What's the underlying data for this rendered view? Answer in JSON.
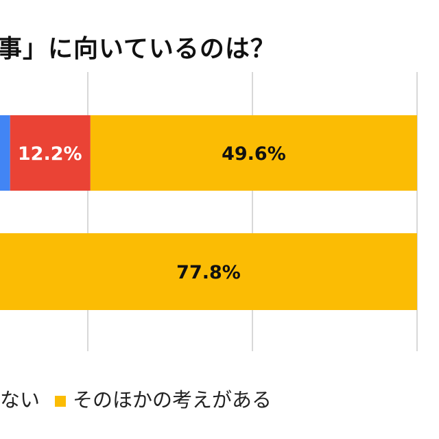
{
  "chart_data": {
    "type": "bar",
    "orientation": "horizontal",
    "stacked": true,
    "title": "事」に向いているのは？",
    "xlim": [
      0,
      100
    ],
    "grid": true,
    "gridlines": [
      50,
      75,
      100
    ],
    "bars": [
      {
        "segments": [
          {
            "color": "#4285F4",
            "value": 38.2,
            "label": ""
          },
          {
            "color": "#EA4335",
            "value": 12.2,
            "label": "12.2%"
          },
          {
            "color": "#FBBC04",
            "value": 49.6,
            "label": "49.6%"
          }
        ]
      },
      {
        "segments": [
          {
            "color": "#FBBC04",
            "value": 77.8,
            "label": "77.8%",
            "start": 22.2
          }
        ]
      }
    ],
    "legend": {
      "placement": "bottom",
      "items": [
        {
          "label": "ない",
          "color": ""
        },
        {
          "label": "そのほかの考えがある",
          "color": "#FBBC04"
        }
      ]
    }
  }
}
